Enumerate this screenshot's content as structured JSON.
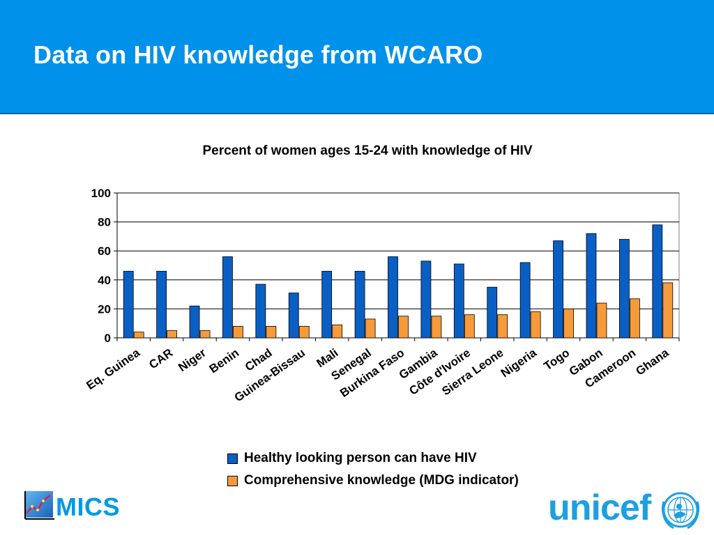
{
  "header": {
    "title": "Data on HIV knowledge from WCARO"
  },
  "chart_data": {
    "type": "bar",
    "title": "Percent of women ages 15-24 with knowledge of HIV",
    "xlabel": "",
    "ylabel": "",
    "ylim": [
      0,
      100
    ],
    "yticks": [
      0,
      20,
      40,
      60,
      80,
      100
    ],
    "grid": true,
    "legend_position": "bottom",
    "categories": [
      "Eq. Guinea",
      "CAR",
      "Niger",
      "Benin",
      "Chad",
      "Guinea-Bissau",
      "Mali",
      "Senegal",
      "Burkina Faso",
      "Gambia",
      "Côte d'Ivoire",
      "Sierra Leone",
      "Nigeria",
      "Togo",
      "Gabon",
      "Cameroon",
      "Ghana"
    ],
    "series": [
      {
        "name": "Healthy looking person can have HIV",
        "color": "#0a5fc4",
        "values": [
          46,
          46,
          22,
          56,
          37,
          31,
          46,
          46,
          56,
          53,
          51,
          35,
          52,
          67,
          72,
          68,
          78
        ]
      },
      {
        "name": "Comprehensive knowledge (MDG indicator)",
        "color": "#f79a3a",
        "values": [
          4,
          5,
          5,
          8,
          8,
          8,
          9,
          13,
          15,
          15,
          16,
          16,
          18,
          20,
          24,
          27,
          38
        ]
      }
    ]
  },
  "logos": {
    "mics": "MICS",
    "unicef": "unicef",
    "mics_icon": "mics-chart-logo-icon",
    "unicef_icon": "unicef-globe-emblem-icon"
  }
}
